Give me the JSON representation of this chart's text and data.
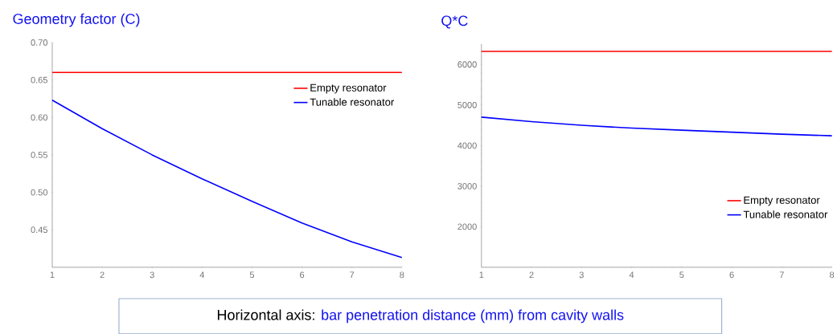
{
  "chart_data": [
    {
      "type": "line",
      "title": "Geometry factor (C)",
      "x": [
        1,
        2,
        3,
        4,
        5,
        6,
        7,
        8
      ],
      "xlim": [
        1,
        8
      ],
      "xticks": [
        1,
        2,
        3,
        4,
        5,
        6,
        7,
        8
      ],
      "ylim": [
        0.4,
        0.7
      ],
      "yticks": [
        0.45,
        {
          "value": 0.5,
          "label": "0.50"
        },
        0.55,
        {
          "value": 0.6,
          "label": "0.60"
        },
        0.65,
        {
          "value": 0.7,
          "label": "0.70"
        }
      ],
      "legend": "top right",
      "grid": false,
      "series": [
        {
          "name": "Empty resonator",
          "color": "#ff0000",
          "values": [
            0.66,
            0.66,
            0.66,
            0.66,
            0.66,
            0.66,
            0.66,
            0.66
          ]
        },
        {
          "name": "Tunable resonator",
          "color": "#0000ff",
          "values": [
            0.623,
            0.585,
            0.55,
            0.518,
            0.488,
            0.459,
            0.434,
            0.413
          ]
        }
      ],
      "annotations": [
        "Horizontal axis:",
        "bar penetration distance (mm) from cavity walls"
      ]
    },
    {
      "type": "line",
      "title": "Q*C",
      "x": [
        1,
        2,
        3,
        4,
        5,
        6,
        7,
        8
      ],
      "xlim": [
        1,
        8
      ],
      "xticks": [
        1,
        2,
        3,
        4,
        5,
        6,
        7,
        8
      ],
      "ylim": [
        1000,
        6500
      ],
      "yticks": [
        2000,
        3000,
        4000,
        5000,
        6000
      ],
      "legend": "bottom right",
      "grid": false,
      "series": [
        {
          "name": "Empty resonator",
          "color": "#ff0000",
          "values": [
            6320,
            6320,
            6320,
            6320,
            6320,
            6320,
            6320,
            6320
          ]
        },
        {
          "name": "Tunable resonator",
          "color": "#0000ff",
          "values": [
            4700,
            4590,
            4500,
            4430,
            4380,
            4330,
            4280,
            4240
          ]
        }
      ]
    }
  ]
}
